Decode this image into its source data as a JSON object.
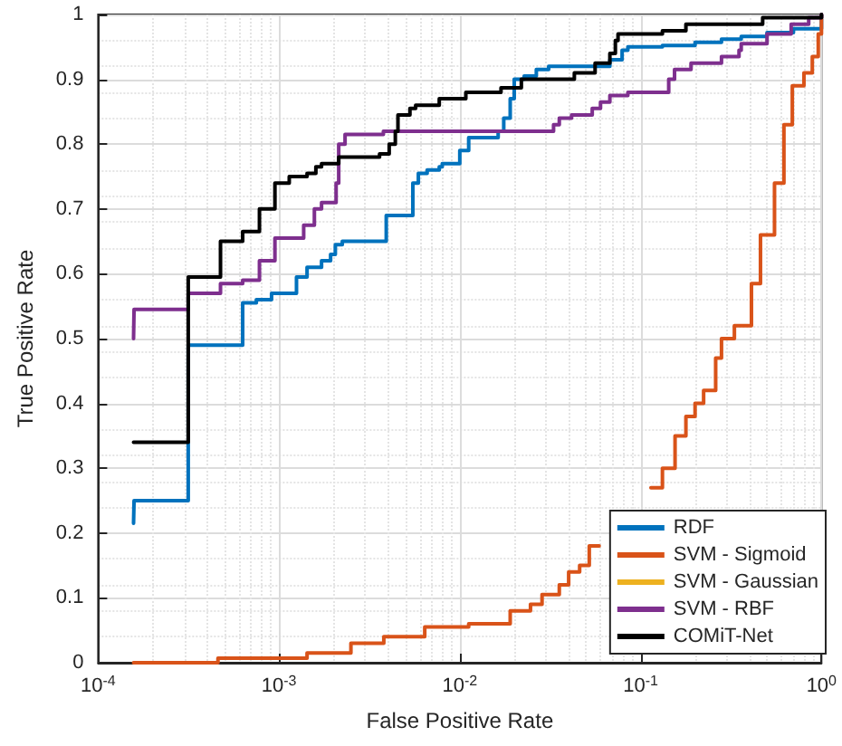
{
  "chart_data": {
    "type": "step",
    "xlabel": "False Positive Rate",
    "ylabel": "True Positive Rate",
    "log": "x",
    "grid": true,
    "legend": "bottom right",
    "marker": "none",
    "line_style": "solid",
    "xlim": [
      0.0001,
      1
    ],
    "xticks": [
      {
        "value": 0.0001,
        "label": "10$^{-4}$"
      },
      {
        "value": 0.001,
        "label": "10$^{-3}$"
      },
      {
        "value": 0.01,
        "label": "10$^{-2}$"
      },
      {
        "value": 0.1,
        "label": "10$^{-1}$"
      },
      {
        "value": 1,
        "label": "10$^{0}$"
      }
    ],
    "ylim": [
      0,
      1
    ],
    "yticks": [
      0,
      0.1,
      0.2,
      0.3,
      0.4,
      0.5,
      0.6,
      0.7,
      0.8,
      0.9,
      1
    ],
    "series": [
      {
        "name": "RDF",
        "color": "#0072bd",
        "x": [
          0.000157,
          0.000158,
          0.000315,
          0.00063,
          0.00075,
          0.00091,
          0.00125,
          0.00143,
          0.00172,
          0.00193,
          0.00205,
          0.00224,
          0.00392,
          0.0055,
          0.0059,
          0.0066,
          0.0077,
          0.008,
          0.01,
          0.0112,
          0.0163,
          0.0175,
          0.019,
          0.02,
          0.0227,
          0.0265,
          0.031,
          0.0676,
          0.079,
          0.085,
          0.132,
          0.2,
          0.28,
          0.36,
          0.5,
          0.7,
          1,
          1
        ],
        "values": [
          0.215,
          0.25,
          0.49,
          0.555,
          0.56,
          0.57,
          0.595,
          0.61,
          0.62,
          0.63,
          0.645,
          0.65,
          0.69,
          0.74,
          0.755,
          0.76,
          0.765,
          0.77,
          0.79,
          0.81,
          0.82,
          0.84,
          0.87,
          0.9,
          0.905,
          0.915,
          0.92,
          0.93,
          0.945,
          0.95,
          0.952,
          0.957,
          0.962,
          0.966,
          0.972,
          0.978,
          0.985,
          1
        ]
      },
      {
        "name": "SVM - Sigmoid",
        "color": "#d95319",
        "x": [
          0.000157,
          0.00046,
          0.00143,
          0.0025,
          0.0038,
          0.0064,
          0.0112,
          0.019,
          0.0246,
          0.0285,
          0.0355,
          0.04,
          0.046,
          0.052,
          0.059,
          0.072,
          0.091,
          0.114,
          0.132,
          0.155,
          0.178,
          0.2,
          0.223,
          0.26,
          0.28,
          0.33,
          0.41,
          0.46,
          0.55,
          0.62,
          0.69,
          0.8,
          0.89,
          0.96,
          1
        ],
        "values": [
          0,
          0.007,
          0.015,
          0.03,
          0.04,
          0.055,
          0.06,
          0.08,
          0.09,
          0.105,
          0.12,
          0.14,
          0.15,
          0.18,
          null,
          null,
          null,
          0.27,
          0.3,
          0.35,
          0.38,
          0.4,
          0.42,
          0.47,
          0.5,
          0.52,
          0.585,
          0.66,
          0.74,
          0.83,
          0.89,
          0.91,
          0.935,
          0.97,
          1
        ]
      },
      {
        "name": "SVM - Gaussian",
        "color": "#edb120"
      },
      {
        "name": "SVM - RBF",
        "color": "#7e2f8e",
        "x": [
          0.000157,
          0.000158,
          0.000315,
          0.000475,
          0.00063,
          0.00078,
          0.00095,
          0.00137,
          0.00157,
          0.00172,
          0.00207,
          0.00214,
          0.00232,
          0.00378,
          0.033,
          0.0355,
          0.0415,
          0.054,
          0.06,
          0.0676,
          0.085,
          0.143,
          0.154,
          0.19,
          0.28,
          0.35,
          0.36,
          0.5,
          0.68,
          0.85,
          1
        ],
        "values": [
          0.5,
          0.545,
          0.57,
          0.585,
          0.59,
          0.62,
          0.655,
          0.675,
          0.7,
          0.71,
          0.74,
          0.8,
          0.815,
          0.82,
          0.83,
          0.84,
          0.845,
          0.855,
          0.865,
          0.875,
          0.88,
          0.9,
          0.915,
          0.925,
          0.935,
          0.945,
          0.955,
          0.97,
          0.985,
          0.995,
          1
        ]
      },
      {
        "name": "COMiT-Net",
        "color": "#000000",
        "x": [
          0.000157,
          0.000315,
          0.000475,
          0.00063,
          0.00078,
          0.00095,
          0.00114,
          0.00143,
          0.0016,
          0.00172,
          0.00214,
          0.0036,
          0.00407,
          0.0044,
          0.00455,
          0.0053,
          0.0057,
          0.0077,
          0.0108,
          0.0169,
          0.0219,
          0.043,
          0.056,
          0.0676,
          0.0725,
          0.075,
          0.132,
          0.178,
          0.473,
          1
        ],
        "values": [
          0.34,
          0.595,
          0.65,
          0.665,
          0.7,
          0.74,
          0.75,
          0.755,
          0.765,
          0.77,
          0.78,
          0.785,
          0.8,
          0.82,
          0.845,
          0.855,
          0.86,
          0.87,
          0.88,
          0.887,
          0.9,
          0.91,
          0.925,
          0.94,
          0.96,
          0.97,
          0.975,
          0.985,
          0.995,
          1
        ]
      }
    ]
  }
}
